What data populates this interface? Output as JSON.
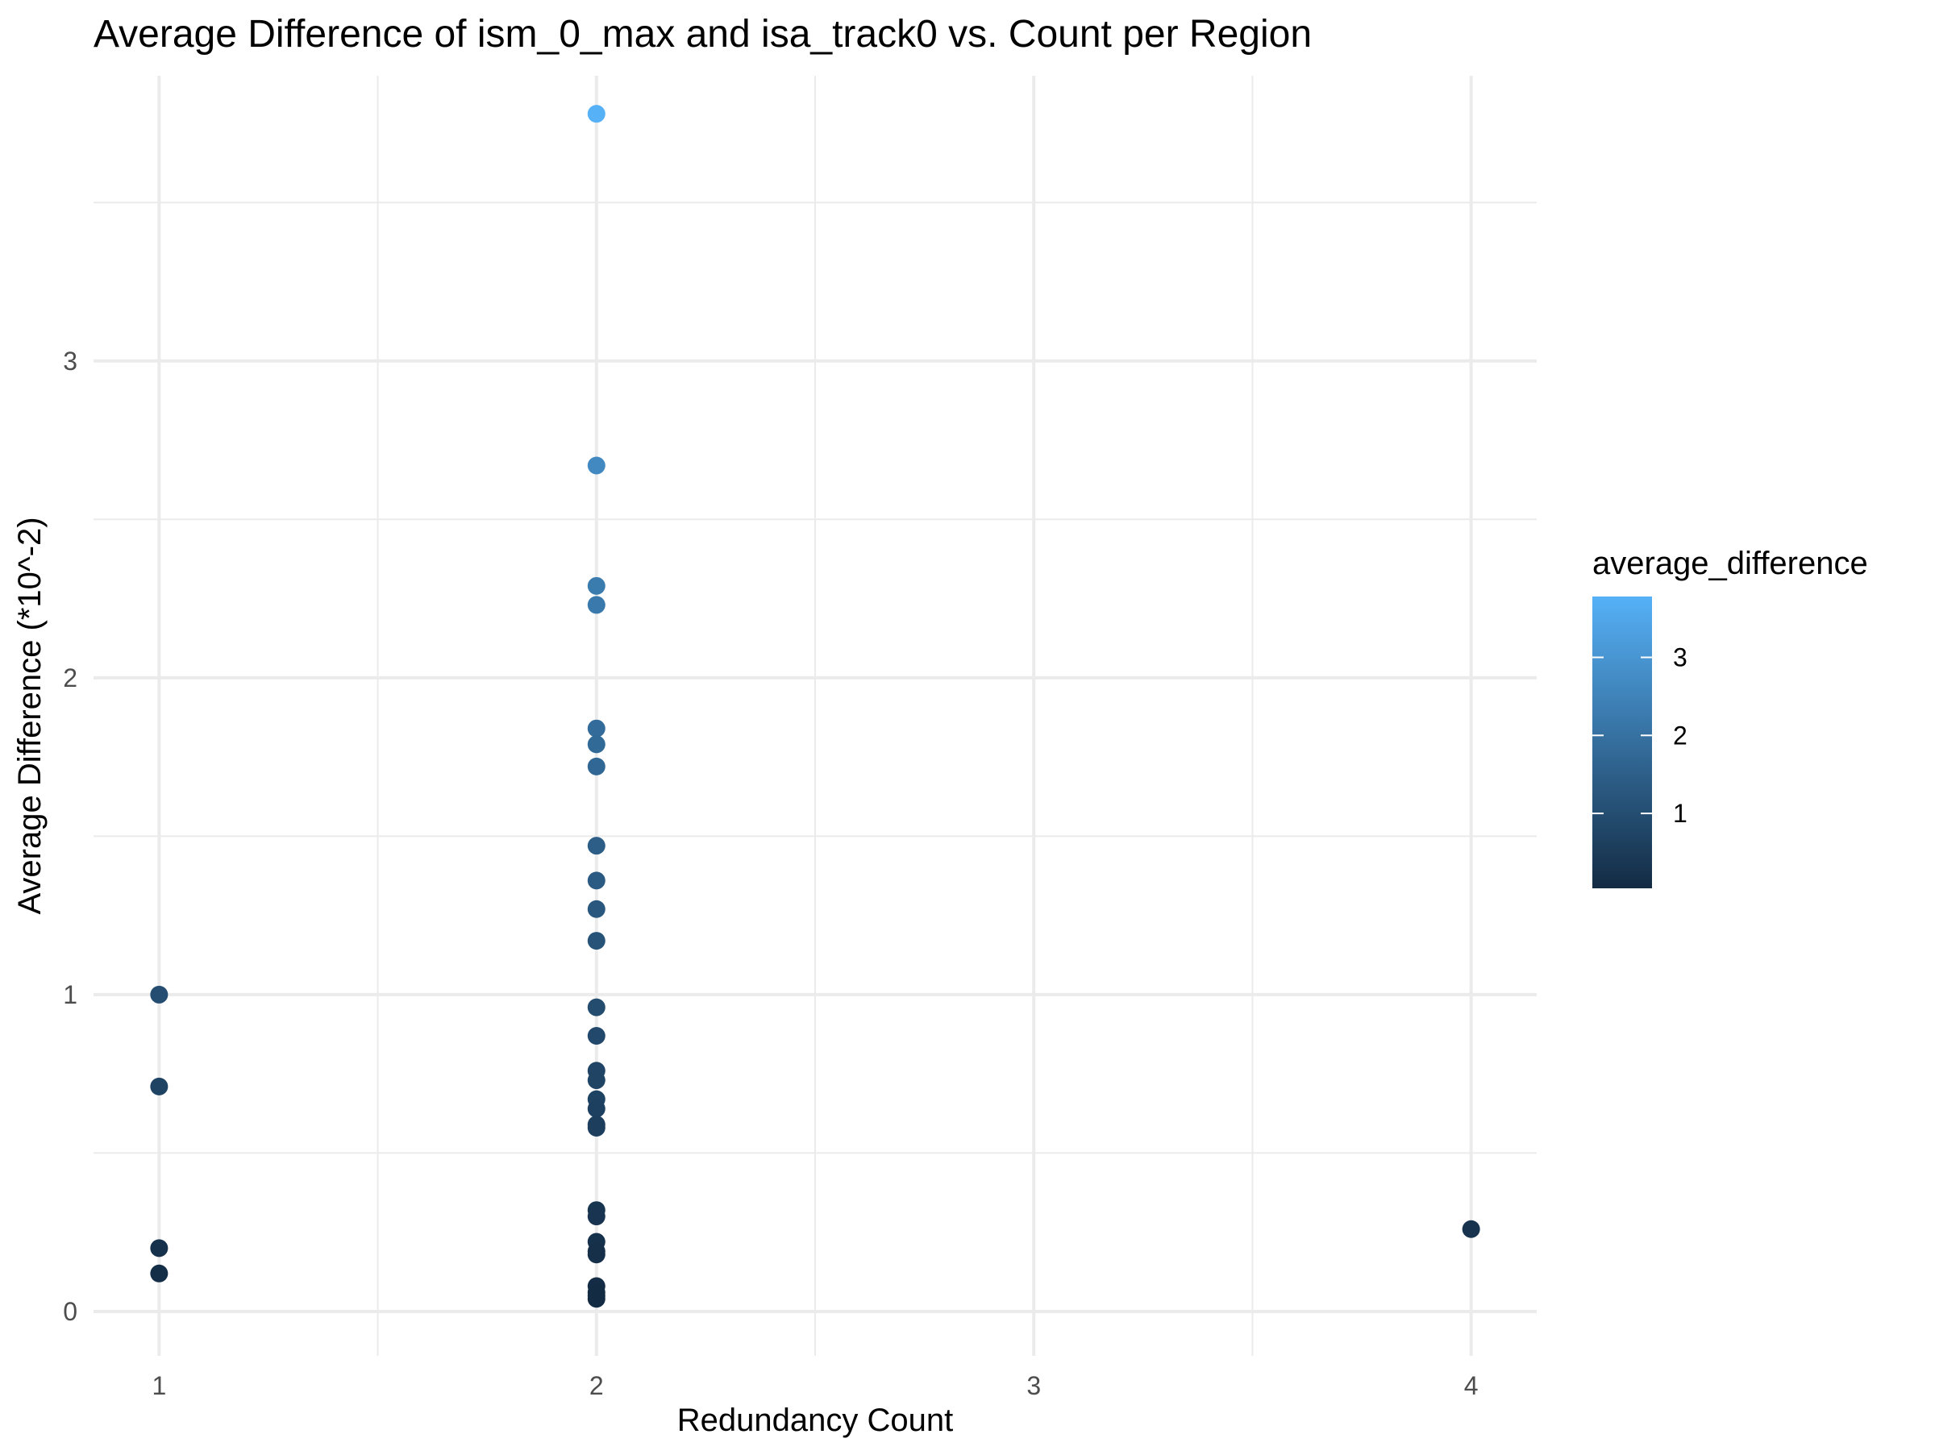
{
  "chart_data": {
    "type": "scatter",
    "title": "Average Difference of ism_0_max and isa_track0 vs. Count per Region",
    "xlabel": "Redundancy Count",
    "ylabel": "Average Difference (*10^-2)",
    "xlim": [
      0.85,
      4.15
    ],
    "ylim": [
      -0.14,
      3.9
    ],
    "x_ticks": [
      1,
      2,
      3,
      4
    ],
    "x_tick_labels": [
      "1",
      "2",
      "3",
      "4"
    ],
    "y_ticks": [
      0,
      1,
      2,
      3
    ],
    "y_tick_labels": [
      "0",
      "1",
      "2",
      "3"
    ],
    "x_minor_breaks": [
      1.5,
      2.5,
      3.5
    ],
    "y_minor_breaks": [
      0.5,
      1.5,
      2.5,
      3.5
    ],
    "grid": true,
    "legend": {
      "title": "average_difference",
      "position": "right",
      "ticks": [
        1,
        2,
        3
      ],
      "tick_labels": [
        "1",
        "2",
        "3"
      ],
      "range": [
        0.04,
        3.78
      ],
      "color_low": "#132B43",
      "color_high": "#56B1F7"
    },
    "points": [
      {
        "x": 1,
        "y": 1.0
      },
      {
        "x": 1,
        "y": 0.71
      },
      {
        "x": 1,
        "y": 0.2
      },
      {
        "x": 1,
        "y": 0.12
      },
      {
        "x": 2,
        "y": 3.78
      },
      {
        "x": 2,
        "y": 2.67
      },
      {
        "x": 2,
        "y": 2.29
      },
      {
        "x": 2,
        "y": 2.23
      },
      {
        "x": 2,
        "y": 1.84
      },
      {
        "x": 2,
        "y": 1.79
      },
      {
        "x": 2,
        "y": 1.72
      },
      {
        "x": 2,
        "y": 1.47
      },
      {
        "x": 2,
        "y": 1.36
      },
      {
        "x": 2,
        "y": 1.27
      },
      {
        "x": 2,
        "y": 1.17
      },
      {
        "x": 2,
        "y": 0.96
      },
      {
        "x": 2,
        "y": 0.87
      },
      {
        "x": 2,
        "y": 0.76
      },
      {
        "x": 2,
        "y": 0.73
      },
      {
        "x": 2,
        "y": 0.67
      },
      {
        "x": 2,
        "y": 0.64
      },
      {
        "x": 2,
        "y": 0.59
      },
      {
        "x": 2,
        "y": 0.58
      },
      {
        "x": 2,
        "y": 0.32
      },
      {
        "x": 2,
        "y": 0.3
      },
      {
        "x": 2,
        "y": 0.22
      },
      {
        "x": 2,
        "y": 0.19
      },
      {
        "x": 2,
        "y": 0.18
      },
      {
        "x": 2,
        "y": 0.08
      },
      {
        "x": 2,
        "y": 0.06
      },
      {
        "x": 2,
        "y": 0.05
      },
      {
        "x": 2,
        "y": 0.04
      },
      {
        "x": 4,
        "y": 0.26
      }
    ]
  }
}
